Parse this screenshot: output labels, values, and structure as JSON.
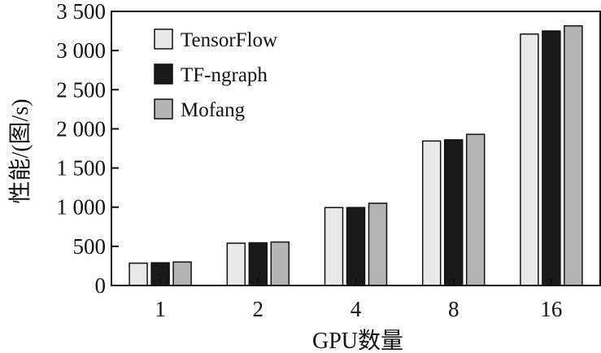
{
  "chart_data": {
    "type": "bar",
    "title": "",
    "xlabel": "GPU数量",
    "ylabel": "性能/(图/s)",
    "categories": [
      "1",
      "2",
      "4",
      "8",
      "16"
    ],
    "ylim": [
      0,
      3500
    ],
    "yticks": [
      0,
      500,
      1000,
      1500,
      2000,
      2500,
      3000,
      3500
    ],
    "ytick_labels": [
      "0",
      "500",
      "1 000",
      "1 500",
      "2 000",
      "2 500",
      "3 000",
      "3 500"
    ],
    "grid": false,
    "legend_position": "top-left",
    "series": [
      {
        "name": "TensorFlow",
        "color": "#e8e8e8",
        "values": [
          285,
          540,
          995,
          1845,
          3210
        ]
      },
      {
        "name": "TF-ngraph",
        "color": "#1a1a1a",
        "values": [
          290,
          545,
          995,
          1860,
          3250
        ]
      },
      {
        "name": "Mofang",
        "color": "#b4b4b4",
        "values": [
          300,
          555,
          1050,
          1930,
          3315
        ]
      }
    ]
  }
}
